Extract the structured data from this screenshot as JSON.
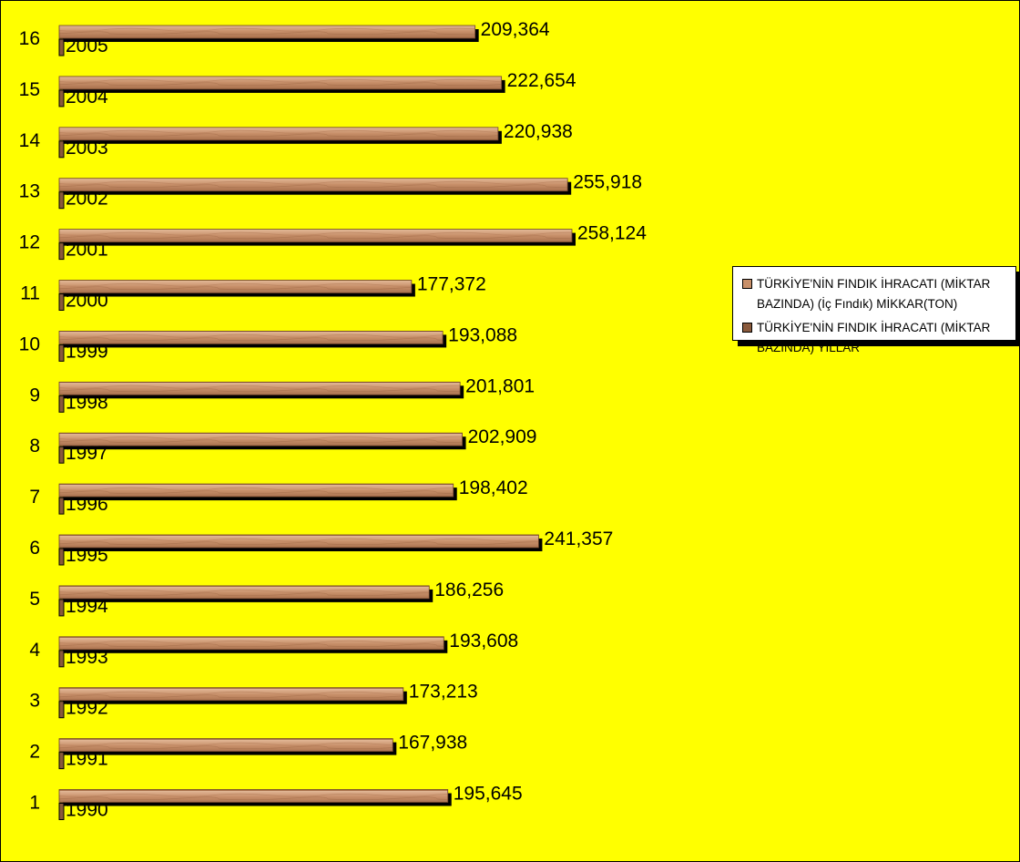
{
  "colors": {
    "background": "#ffff00",
    "bar_fill": "#c8906a",
    "bar_fill_dark": "#8a5a3c",
    "shadow": "#000000",
    "text": "#000000"
  },
  "legend": {
    "items": [
      {
        "label": "TÜRKİYE'NİN  FINDIK İHRACATI (MİKTAR BAZINDA) (İç Fındık) MİKKAR(TON)",
        "color": "#c8906a"
      },
      {
        "label": "TÜRKİYE'NİN  FINDIK İHRACATI (MİKTAR BAZINDA) YILLAR",
        "color": "#8a5a3c"
      }
    ]
  },
  "chart_data": {
    "type": "bar",
    "orientation": "horizontal",
    "categories": [
      "1",
      "2",
      "3",
      "4",
      "5",
      "6",
      "7",
      "8",
      "9",
      "10",
      "11",
      "12",
      "13",
      "14",
      "15",
      "16"
    ],
    "series": [
      {
        "name": "TÜRKİYE'NİN  FINDIK İHRACATI (MİKTAR BAZINDA) (İç Fındık) MİKKAR(TON)",
        "values": [
          195645,
          167938,
          173213,
          193608,
          186256,
          241357,
          198402,
          202909,
          201801,
          193088,
          177372,
          258124,
          255918,
          220938,
          222654,
          209364
        ],
        "labels": [
          "195,645",
          "167,938",
          "173,213",
          "193,608",
          "186,256",
          "241,357",
          "198,402",
          "202,909",
          "201,801",
          "193,088",
          "177,372",
          "258,124",
          "255,918",
          "220,938",
          "222,654",
          "209,364"
        ]
      },
      {
        "name": "TÜRKİYE'NİN  FINDIK İHRACATI (MİKTAR BAZINDA) YILLAR",
        "values": [
          1990,
          1991,
          1992,
          1993,
          1994,
          1995,
          1996,
          1997,
          1998,
          1999,
          2000,
          2001,
          2002,
          2003,
          2004,
          2005
        ],
        "labels": [
          "1990",
          "1991",
          "1992",
          "1993",
          "1994",
          "1995",
          "1996",
          "1997",
          "1998",
          "1999",
          "2000",
          "2001",
          "2002",
          "2003",
          "2004",
          "2005"
        ]
      }
    ],
    "xlim": [
      0,
      258124
    ],
    "grid": false,
    "legend_position": "right"
  }
}
